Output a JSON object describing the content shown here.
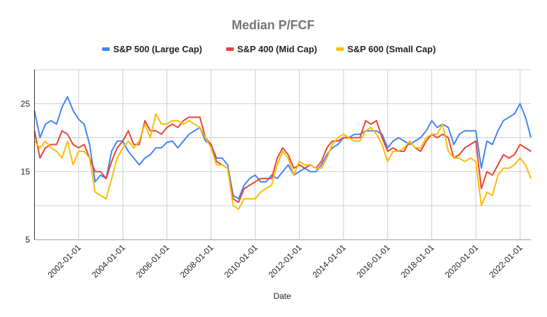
{
  "chart_data": {
    "type": "line",
    "title": "Median P/FCF",
    "xlabel": "Date",
    "ylabel": "",
    "ylim": [
      5,
      30
    ],
    "yticks": [
      "5",
      "15",
      "25"
    ],
    "xticks": [
      "2002-01-01",
      "2004-01-01",
      "2006-01-01",
      "2008-01-01",
      "2010-01-01",
      "2012-01-01",
      "2014-01-01",
      "2016-01-01",
      "2018-01-01",
      "2020-01-01",
      "2022-01-01"
    ],
    "xlim": [
      "2000-01-01",
      "2022-07-01"
    ],
    "grid": true,
    "legend_position": "top",
    "x": [
      "2000-01-01",
      "2000-04-01",
      "2000-07-01",
      "2000-10-01",
      "2001-01-01",
      "2001-04-01",
      "2001-07-01",
      "2001-10-01",
      "2002-01-01",
      "2002-04-01",
      "2002-07-01",
      "2002-10-01",
      "2003-01-01",
      "2003-04-01",
      "2003-07-01",
      "2003-10-01",
      "2004-01-01",
      "2004-04-01",
      "2004-07-01",
      "2004-10-01",
      "2005-01-01",
      "2005-04-01",
      "2005-07-01",
      "2005-10-01",
      "2006-01-01",
      "2006-04-01",
      "2006-07-01",
      "2006-10-01",
      "2007-01-01",
      "2007-04-01",
      "2007-07-01",
      "2007-10-01",
      "2008-01-01",
      "2008-04-01",
      "2008-07-01",
      "2008-10-01",
      "2009-01-01",
      "2009-04-01",
      "2009-07-01",
      "2009-10-01",
      "2010-01-01",
      "2010-04-01",
      "2010-07-01",
      "2010-10-01",
      "2011-01-01",
      "2011-04-01",
      "2011-07-01",
      "2011-10-01",
      "2012-01-01",
      "2012-04-01",
      "2012-07-01",
      "2012-10-01",
      "2013-01-01",
      "2013-04-01",
      "2013-07-01",
      "2013-10-01",
      "2014-01-01",
      "2014-04-01",
      "2014-07-01",
      "2014-10-01",
      "2015-01-01",
      "2015-04-01",
      "2015-07-01",
      "2015-10-01",
      "2016-01-01",
      "2016-04-01",
      "2016-07-01",
      "2016-10-01",
      "2017-01-01",
      "2017-04-01",
      "2017-07-01",
      "2017-10-01",
      "2018-01-01",
      "2018-04-01",
      "2018-07-01",
      "2018-10-01",
      "2019-01-01",
      "2019-04-01",
      "2019-07-01",
      "2019-10-01",
      "2020-01-01",
      "2020-04-01",
      "2020-07-01",
      "2020-10-01",
      "2021-01-01",
      "2021-04-01",
      "2021-07-01",
      "2021-10-01",
      "2022-01-01",
      "2022-04-01",
      "2022-07-01"
    ],
    "series": [
      {
        "name": "S&P 500 (Large Cap)",
        "color": "#4285f4",
        "values": [
          24,
          20,
          22,
          22.5,
          22,
          24.5,
          26,
          24,
          22.7,
          22,
          19,
          13.5,
          14.5,
          14,
          18,
          19.5,
          19.5,
          18,
          17,
          16,
          17,
          17.5,
          18.5,
          18.5,
          19.3,
          19.5,
          18.5,
          19.5,
          20.5,
          21,
          21.5,
          19.5,
          19,
          17,
          17,
          16,
          11.5,
          11,
          13,
          14,
          14.5,
          13.5,
          13.5,
          14.5,
          14,
          15,
          16,
          14.5,
          15,
          15.5,
          15,
          15,
          16,
          17.5,
          18.5,
          19,
          20,
          20,
          20.5,
          20.5,
          21,
          21,
          21,
          20.5,
          18.5,
          19.5,
          20,
          19.5,
          19,
          19.5,
          20,
          21,
          22.5,
          21.5,
          22,
          21.5,
          19,
          20.5,
          21,
          21,
          21,
          15.5,
          19.5,
          19,
          21,
          22.5,
          23,
          23.5,
          25,
          23,
          20
        ]
      },
      {
        "name": "S&P 400 (Mid Cap)",
        "color": "#ea4335",
        "values": [
          21,
          17,
          18.5,
          19,
          19,
          21,
          20.5,
          19,
          18.5,
          19,
          17,
          15,
          15,
          14,
          16.5,
          18.5,
          19.5,
          21,
          19,
          19,
          22.5,
          21,
          21,
          20.5,
          21.5,
          22,
          21.5,
          22.5,
          23,
          23,
          23,
          20,
          19,
          16.5,
          16,
          15.5,
          11,
          10.5,
          12.5,
          13,
          13.5,
          14,
          14,
          14,
          17,
          18.5,
          17.5,
          15.5,
          16,
          15.5,
          16,
          15.5,
          16.5,
          18.5,
          19.5,
          19.5,
          20,
          20,
          20,
          20,
          22.5,
          22,
          22.5,
          20,
          18,
          18.5,
          18,
          18,
          19.5,
          18.5,
          18,
          19.5,
          20.5,
          20,
          20.5,
          20,
          17,
          17.5,
          18.5,
          19,
          19.5,
          12.5,
          15,
          14.5,
          16,
          17.5,
          17,
          17.5,
          19,
          18.5,
          18
        ]
      },
      {
        "name": "S&P 600 (Small Cap)",
        "color": "#fbbc04",
        "values": [
          19.5,
          18.5,
          19.5,
          18.5,
          18,
          17,
          19.5,
          16,
          18,
          18,
          17,
          12,
          11.5,
          11,
          14,
          17,
          18.5,
          19.5,
          18.5,
          19.5,
          22,
          20,
          23.5,
          22,
          22,
          22.5,
          22.5,
          22,
          22.5,
          22,
          21.5,
          20,
          18.5,
          16,
          16,
          15.5,
          10,
          9.5,
          11,
          11,
          11,
          12,
          12.5,
          13,
          16,
          18,
          17,
          14.5,
          16.5,
          16,
          16,
          15.5,
          15.5,
          17,
          19,
          20,
          20.5,
          20,
          19.5,
          19.5,
          21,
          21.5,
          20.5,
          19,
          16.5,
          18,
          18,
          18.5,
          19.5,
          18.5,
          18.5,
          20,
          20.5,
          20.5,
          22,
          18,
          17,
          17,
          16.5,
          17,
          16.5,
          10,
          12,
          11.5,
          14.5,
          15.5,
          15.5,
          16,
          17,
          16,
          14
        ]
      }
    ]
  }
}
